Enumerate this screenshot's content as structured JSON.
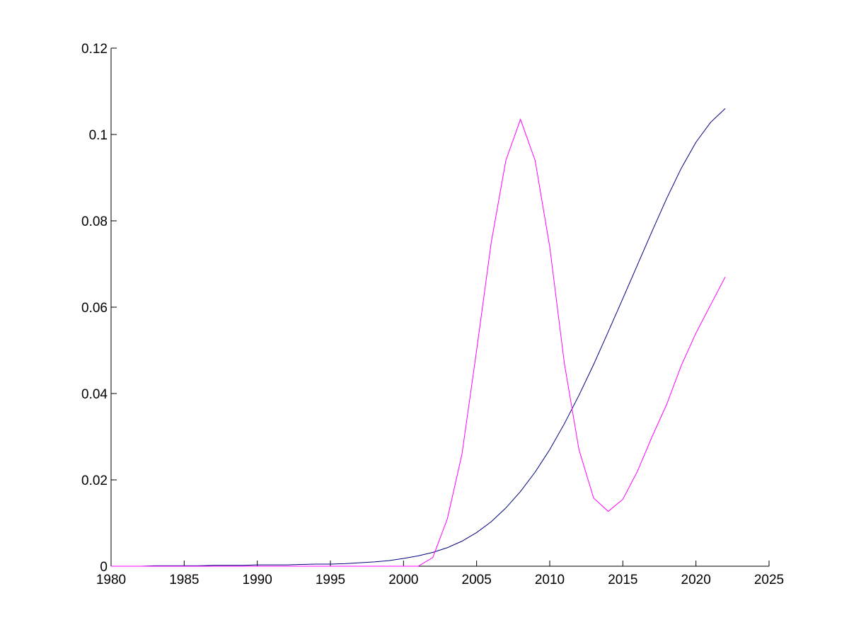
{
  "chart_data": {
    "type": "line",
    "x": [
      1980,
      1981,
      1982,
      1983,
      1984,
      1985,
      1986,
      1987,
      1988,
      1989,
      1990,
      1991,
      1992,
      1993,
      1994,
      1995,
      1996,
      1997,
      1998,
      1999,
      2000,
      2001,
      2002,
      2003,
      2004,
      2005,
      2006,
      2007,
      2008,
      2009,
      2010,
      2011,
      2012,
      2013,
      2014,
      2015,
      2016,
      2017,
      2018,
      2019,
      2020,
      2021,
      2022
    ],
    "series": [
      {
        "color": "#00007f",
        "values": [
          0,
          0,
          0,
          0.0001,
          0.0001,
          0.0001,
          0.0001,
          0.0002,
          0.0002,
          0.0002,
          0.0003,
          0.0003,
          0.0003,
          0.0004,
          0.0005,
          0.0005,
          0.0006,
          0.0008,
          0.001,
          0.0013,
          0.0018,
          0.0024,
          0.0032,
          0.0043,
          0.0058,
          0.0078,
          0.0103,
          0.0135,
          0.0173,
          0.0218,
          0.027,
          0.033,
          0.0396,
          0.0467,
          0.0543,
          0.062,
          0.0698,
          0.0776,
          0.0852,
          0.0922,
          0.0982,
          0.1028,
          0.106
        ]
      },
      {
        "color": "#ff00ff",
        "values": [
          0,
          0,
          0,
          0,
          0,
          0,
          0,
          0,
          0,
          0,
          0,
          0,
          0,
          0,
          0,
          0,
          0,
          0,
          0,
          0,
          0,
          0,
          0.002,
          0.011,
          0.026,
          0.05,
          0.075,
          0.094,
          0.1035,
          0.094,
          0.074,
          0.047,
          0.027,
          0.0158,
          0.0127,
          0.0155,
          0.022,
          0.03,
          0.0375,
          0.0465,
          0.054,
          0.0605,
          0.067
        ]
      }
    ],
    "xlim": [
      1980,
      2025
    ],
    "xticks": [
      1980,
      1985,
      1990,
      1995,
      2000,
      2005,
      2010,
      2015,
      2020,
      2025
    ],
    "ylim": [
      0,
      0.12
    ],
    "yticks": [
      0,
      0.02,
      0.04,
      0.06,
      0.08,
      0.1,
      0.12
    ]
  }
}
